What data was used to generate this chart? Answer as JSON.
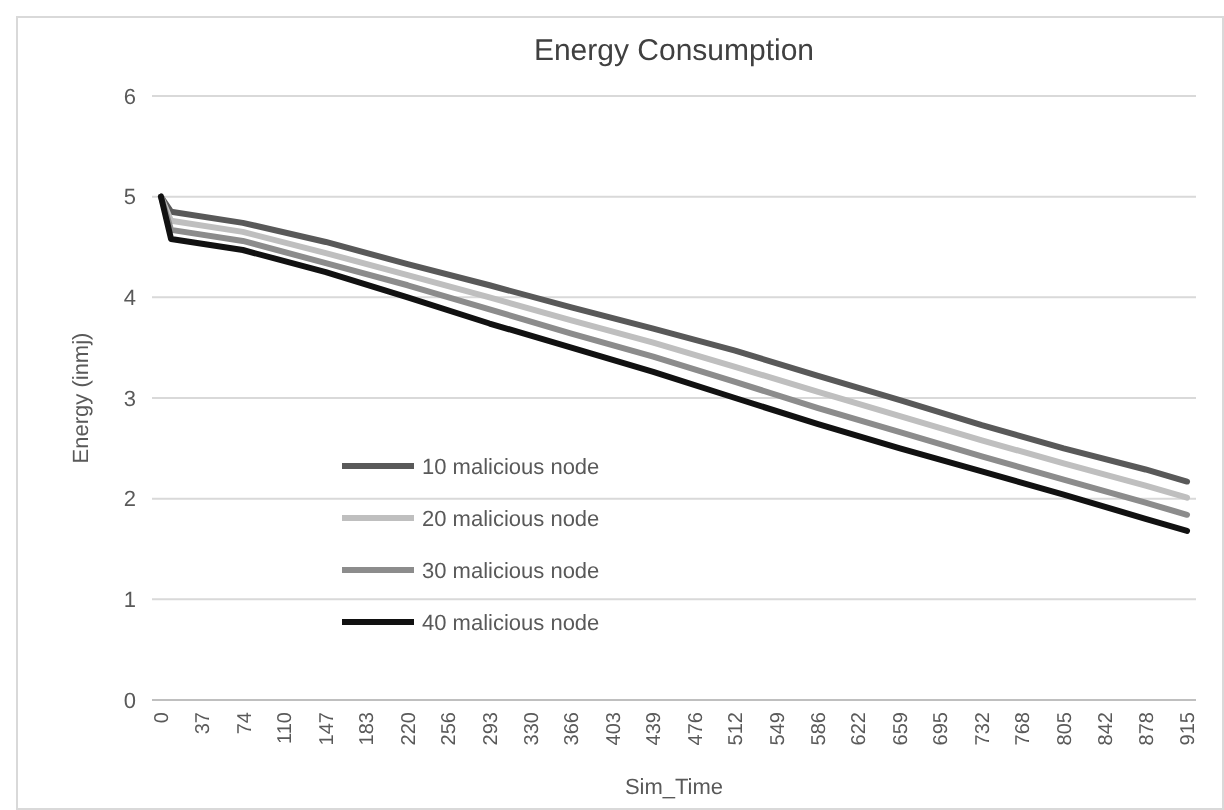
{
  "chart_data": {
    "type": "line",
    "title": "Energy Consumption",
    "xlabel": "Sim_Time",
    "ylabel": "Energy (inmj)",
    "x": [
      0,
      9,
      73,
      147,
      220,
      293,
      366,
      439,
      512,
      586,
      659,
      732,
      805,
      878,
      915
    ],
    "xlim": [
      -8,
      923
    ],
    "xticks": [
      0,
      37,
      74,
      110,
      147,
      183,
      220,
      256,
      293,
      330,
      366,
      403,
      439,
      476,
      512,
      549,
      586,
      622,
      659,
      695,
      732,
      768,
      805,
      842,
      878,
      915
    ],
    "ylim": [
      0,
      6
    ],
    "yticks": [
      0,
      1,
      2,
      3,
      4,
      5,
      6
    ],
    "grid": "y",
    "legend": "left",
    "line_style": "solid",
    "marker": "none",
    "series": [
      {
        "name": "10 malicious node",
        "color": "#595959",
        "values": [
          5,
          4.85,
          4.74,
          4.55,
          4.33,
          4.12,
          3.9,
          3.69,
          3.47,
          3.22,
          2.98,
          2.73,
          2.5,
          2.29,
          2.17
        ]
      },
      {
        "name": "20 malicious node",
        "color": "#bfbfbf",
        "values": [
          5,
          4.76,
          4.65,
          4.44,
          4.22,
          4.0,
          3.77,
          3.55,
          3.31,
          3.06,
          2.82,
          2.58,
          2.35,
          2.13,
          2.01
        ]
      },
      {
        "name": "30 malicious node",
        "color": "#8c8c8c",
        "values": [
          5,
          4.67,
          4.56,
          4.34,
          4.12,
          3.88,
          3.64,
          3.41,
          3.16,
          2.9,
          2.66,
          2.42,
          2.19,
          1.96,
          1.84
        ]
      },
      {
        "name": "40 malicious node",
        "color": "#111111",
        "values": [
          5,
          4.58,
          4.47,
          4.25,
          4.0,
          3.74,
          3.5,
          3.26,
          3.0,
          2.74,
          2.5,
          2.27,
          2.04,
          1.8,
          1.68
        ]
      }
    ]
  }
}
